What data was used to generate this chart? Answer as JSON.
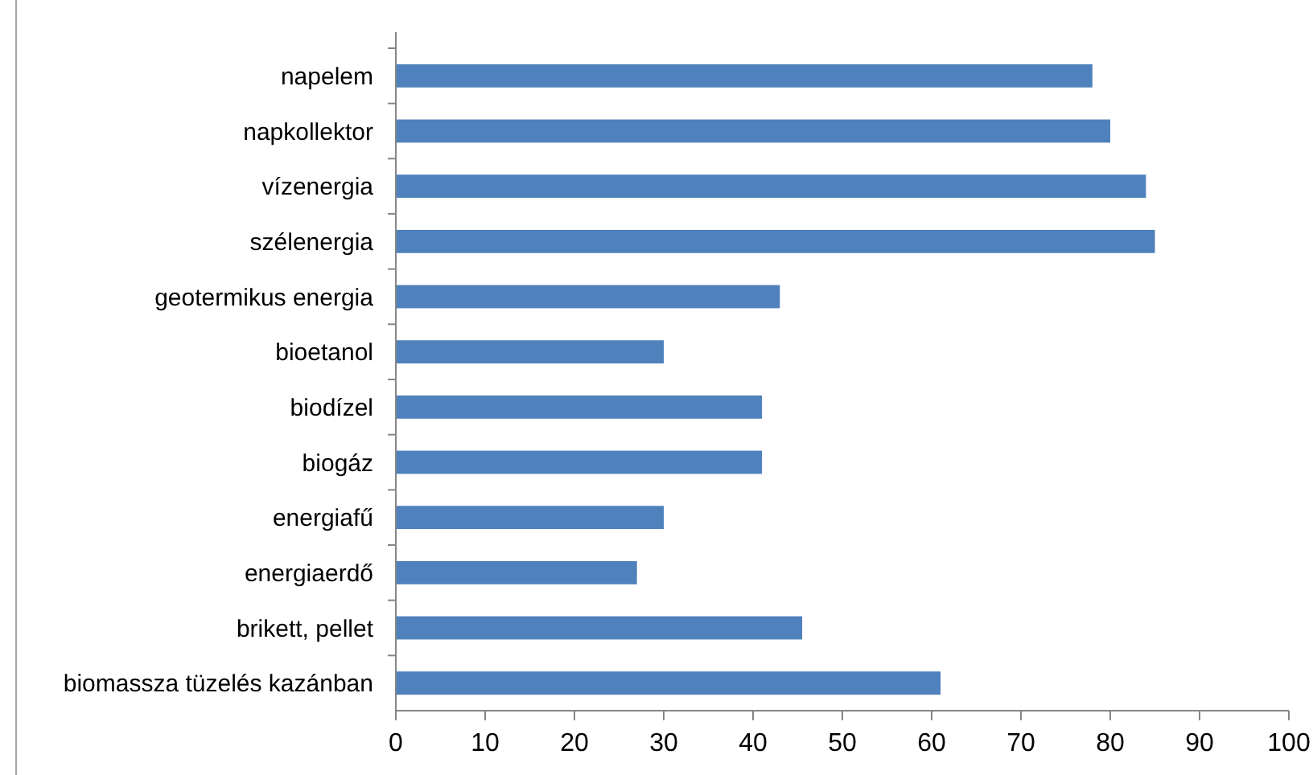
{
  "chart_data": {
    "type": "bar",
    "orientation": "horizontal",
    "categories": [
      "napelem",
      "napkollektor",
      "vízenergia",
      "szélenergia",
      "geotermikus energia",
      "bioetanol",
      "biodízel",
      "biogáz",
      "energiafű",
      "energiaerdő",
      "brikett, pellet",
      "biomassza tüzelés kazánban"
    ],
    "values": [
      78,
      80,
      84,
      85,
      43,
      30,
      41,
      41,
      30,
      27,
      45.5,
      61
    ],
    "color": "#4f81bd",
    "xlim": [
      0,
      100
    ],
    "xticks": [
      0,
      10,
      20,
      30,
      40,
      50,
      60,
      70,
      80,
      90,
      100
    ],
    "grid": false
  }
}
